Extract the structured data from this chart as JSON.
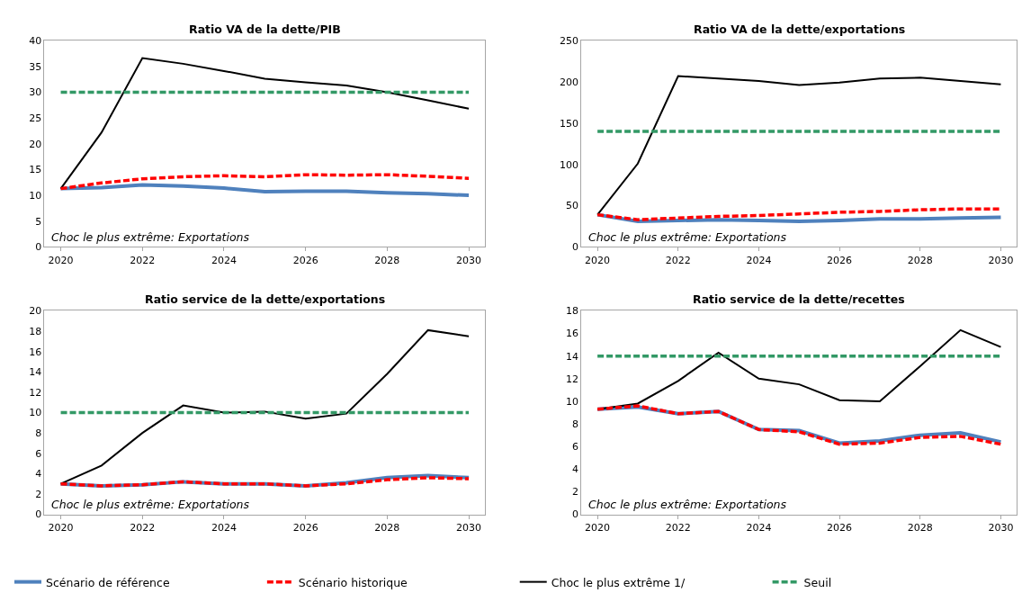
{
  "chart_data": [
    {
      "type": "line",
      "title": "Ratio VA de la dette/PIB",
      "x": [
        2020,
        2021,
        2022,
        2023,
        2024,
        2025,
        2026,
        2027,
        2028,
        2029,
        2030
      ],
      "xlim": [
        2019.6,
        2030.4
      ],
      "xticks": [
        2020,
        2022,
        2024,
        2026,
        2028,
        2030
      ],
      "ylim": [
        0,
        40
      ],
      "yticks": [
        0,
        5,
        10,
        15,
        20,
        25,
        30,
        35,
        40
      ],
      "legend": "bottom",
      "annotations": [
        "Choc le plus extrême: Exportations"
      ],
      "series": [
        {
          "name": "Scénario de référence",
          "color": "#4f81bd",
          "line_style": "solid",
          "values": [
            11.3,
            11.5,
            12.0,
            11.8,
            11.4,
            10.7,
            10.8,
            10.8,
            10.5,
            10.3,
            10.0
          ]
        },
        {
          "name": "Scénario historique",
          "color": "#ff0000",
          "line_style": "dashed",
          "values": [
            11.3,
            12.4,
            13.2,
            13.6,
            13.8,
            13.6,
            14.0,
            13.9,
            14.0,
            13.7,
            13.3
          ]
        },
        {
          "name": "Choc le plus extrême 1/",
          "color": "#000000",
          "line_style": "solid",
          "values": [
            11.3,
            22.2,
            36.6,
            35.5,
            34.1,
            32.6,
            31.9,
            31.3,
            30.0,
            28.4,
            26.8
          ]
        },
        {
          "name": "Seuil",
          "color": "#339966",
          "line_style": "dashed",
          "values": [
            30,
            30,
            30,
            30,
            30,
            30,
            30,
            30,
            30,
            30,
            30
          ]
        }
      ]
    },
    {
      "type": "line",
      "title": "Ratio VA de la dette/exportations",
      "x": [
        2020,
        2021,
        2022,
        2023,
        2024,
        2025,
        2026,
        2027,
        2028,
        2029,
        2030
      ],
      "xlim": [
        2019.6,
        2030.4
      ],
      "xticks": [
        2020,
        2022,
        2024,
        2026,
        2028,
        2030
      ],
      "ylim": [
        0,
        250
      ],
      "yticks": [
        0,
        50,
        100,
        150,
        200,
        250
      ],
      "annotations": [
        "Choc le plus extrême: Exportations"
      ],
      "series": [
        {
          "color": "#4f81bd",
          "line_style": "solid",
          "values": [
            39,
            31,
            32,
            33,
            32,
            31,
            32,
            34,
            34,
            35,
            36
          ]
        },
        {
          "color": "#ff0000",
          "line_style": "dashed",
          "values": [
            39,
            33,
            35,
            37,
            38,
            40,
            42,
            43,
            45,
            46,
            46
          ]
        },
        {
          "color": "#000000",
          "line_style": "solid",
          "values": [
            39,
            101,
            207,
            204,
            201,
            196,
            199,
            204,
            205,
            201,
            197
          ]
        },
        {
          "color": "#339966",
          "line_style": "dashed",
          "values": [
            140,
            140,
            140,
            140,
            140,
            140,
            140,
            140,
            140,
            140,
            140
          ]
        }
      ]
    },
    {
      "type": "line",
      "title": "Ratio service de la dette/exportations",
      "x": [
        2020,
        2021,
        2022,
        2023,
        2024,
        2025,
        2026,
        2027,
        2028,
        2029,
        2030
      ],
      "xlim": [
        2019.6,
        2030.4
      ],
      "xticks": [
        2020,
        2022,
        2024,
        2026,
        2028,
        2030
      ],
      "ylim": [
        0,
        20
      ],
      "yticks": [
        0,
        2,
        4,
        6,
        8,
        10,
        12,
        14,
        16,
        18,
        20
      ],
      "annotations": [
        "Choc le plus extrême: Exportations"
      ],
      "series": [
        {
          "color": "#4f81bd",
          "line_style": "solid",
          "values": [
            3.0,
            2.8,
            2.9,
            3.2,
            3.0,
            3.0,
            2.8,
            3.1,
            3.6,
            3.8,
            3.6
          ]
        },
        {
          "color": "#ff0000",
          "line_style": "dashed",
          "values": [
            3.0,
            2.8,
            2.9,
            3.2,
            3.0,
            3.0,
            2.8,
            3.0,
            3.4,
            3.6,
            3.5
          ]
        },
        {
          "color": "#000000",
          "line_style": "solid",
          "values": [
            3.0,
            4.8,
            8.0,
            10.7,
            10.0,
            10.1,
            9.4,
            9.9,
            13.8,
            18.1,
            17.5
          ]
        },
        {
          "color": "#339966",
          "line_style": "dashed",
          "values": [
            10,
            10,
            10,
            10,
            10,
            10,
            10,
            10,
            10,
            10,
            10
          ]
        }
      ]
    },
    {
      "type": "line",
      "title": "Ratio service de la dette/recettes",
      "x": [
        2020,
        2021,
        2022,
        2023,
        2024,
        2025,
        2026,
        2027,
        2028,
        2029,
        2030
      ],
      "xlim": [
        2019.6,
        2030.4
      ],
      "xticks": [
        2020,
        2022,
        2024,
        2026,
        2028,
        2030
      ],
      "ylim": [
        0,
        18
      ],
      "yticks": [
        0,
        2,
        4,
        6,
        8,
        10,
        12,
        14,
        16,
        18
      ],
      "annotations": [
        "Choc le plus extrême: Exportations"
      ],
      "series": [
        {
          "color": "#4f81bd",
          "line_style": "solid",
          "values": [
            9.3,
            9.5,
            8.9,
            9.1,
            7.5,
            7.4,
            6.3,
            6.5,
            7.0,
            7.2,
            6.4
          ]
        },
        {
          "color": "#ff0000",
          "line_style": "dashed",
          "values": [
            9.3,
            9.6,
            8.9,
            9.1,
            7.5,
            7.3,
            6.2,
            6.3,
            6.8,
            6.9,
            6.2
          ]
        },
        {
          "color": "#000000",
          "line_style": "solid",
          "values": [
            9.3,
            9.8,
            11.8,
            14.3,
            12.0,
            11.5,
            10.1,
            10.0,
            13.1,
            16.3,
            14.8
          ]
        },
        {
          "color": "#339966",
          "line_style": "dashed",
          "values": [
            14,
            14,
            14,
            14,
            14,
            14,
            14,
            14,
            14,
            14,
            14
          ]
        }
      ]
    }
  ]
}
